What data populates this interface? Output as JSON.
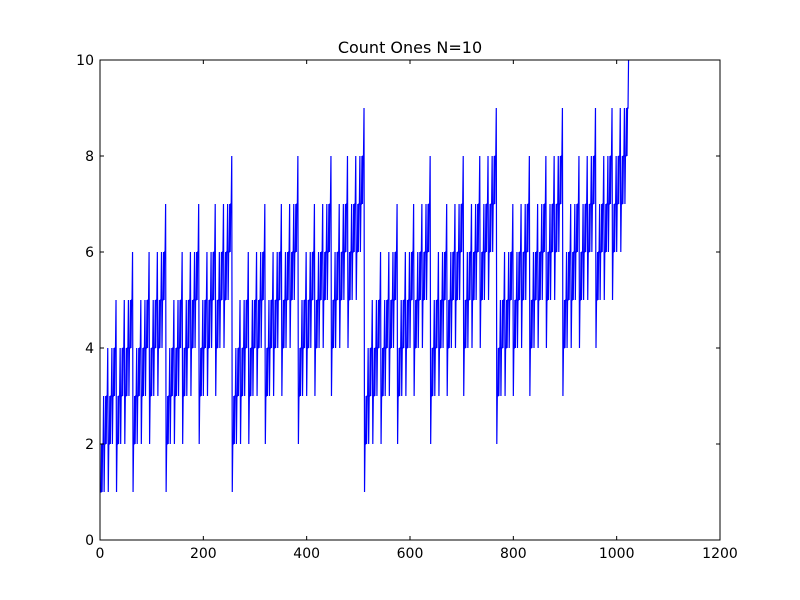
{
  "chart_data": {
    "type": "line",
    "title": "Count Ones N=10",
    "xlabel": "",
    "ylabel": "",
    "xlim": [
      0,
      1200
    ],
    "ylim": [
      0,
      10
    ],
    "xticks": [
      0,
      200,
      400,
      600,
      800,
      1000,
      1200
    ],
    "yticks": [
      0,
      2,
      4,
      6,
      8,
      10
    ],
    "xtick_labels": [
      "0",
      "200",
      "400",
      "600",
      "800",
      "1000",
      "1200"
    ],
    "ytick_labels": [
      "0",
      "2",
      "4",
      "6",
      "8",
      "10"
    ],
    "grid": false,
    "legend": "none",
    "series": [
      {
        "color": "#0000ff",
        "x_start": 1,
        "x_end": 1023,
        "y_rule": "popcount(x)"
      }
    ]
  }
}
